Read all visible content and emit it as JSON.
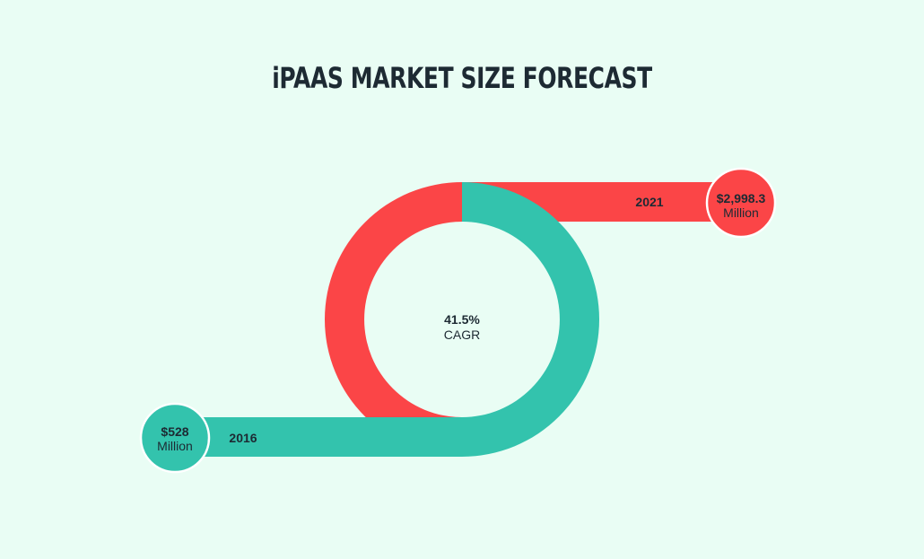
{
  "title": "iPAAS MARKET SIZE FORECAST",
  "colors": {
    "background": "#e9fdf4",
    "start_series": "#33c3ad",
    "end_series": "#fb4547",
    "text": "#1d2a33"
  },
  "chart_data": {
    "type": "other",
    "title": "iPAAS MARKET SIZE FORECAST",
    "points": [
      {
        "year": "2016",
        "value": 528,
        "value_label": "$528",
        "unit": "Million"
      },
      {
        "year": "2021",
        "value": 2998.3,
        "value_label": "$2,998.3",
        "unit": "Million"
      }
    ],
    "cagr": {
      "value": "41.5%",
      "label": "CAGR"
    }
  }
}
